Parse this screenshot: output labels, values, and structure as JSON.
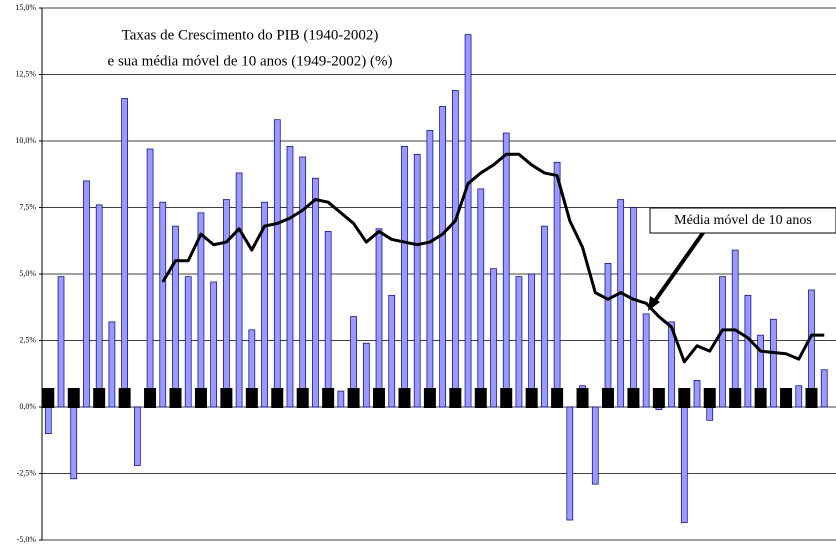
{
  "chart_data": {
    "type": "bar",
    "title": "Taxas de Crescimento do PIB (1940-2002)",
    "subtitle": "e sua média móvel de 10 anos (1949-2002) (%)",
    "categories": [
      null,
      null,
      null,
      null,
      null,
      null,
      null,
      null,
      null,
      null,
      null,
      null,
      null,
      null,
      null,
      null,
      null,
      null,
      null,
      null,
      null,
      null,
      null,
      null,
      null,
      null,
      null,
      null,
      null,
      null,
      null,
      null,
      null,
      null,
      null,
      null,
      null,
      null,
      null,
      null,
      null,
      null,
      null,
      null,
      null,
      null,
      null,
      null,
      null,
      null,
      null,
      null,
      null,
      null,
      null,
      null,
      null,
      null,
      null,
      null,
      null,
      null
    ],
    "series": [
      {
        "type": "bar",
        "color": "#9999ff",
        "values": [
          -1.0,
          4.9,
          -2.7,
          8.5,
          7.6,
          3.2,
          11.6,
          -2.2,
          9.7,
          7.7,
          6.8,
          4.9,
          7.3,
          4.7,
          7.8,
          8.8,
          2.9,
          7.7,
          10.8,
          9.8,
          9.4,
          8.6,
          6.6,
          0.6,
          3.4,
          2.4,
          6.7,
          4.2,
          9.8,
          9.5,
          10.4,
          11.3,
          11.9,
          14.0,
          8.2,
          5.2,
          10.3,
          4.9,
          5.0,
          6.8,
          9.2,
          -4.25,
          0.8,
          -2.9,
          5.4,
          7.8,
          7.5,
          3.5,
          -0.1,
          3.2,
          -4.35,
          1.0,
          -0.5,
          4.9,
          5.9,
          4.2,
          2.7,
          3.3,
          0.2,
          0.8,
          4.4,
          1.4
        ]
      },
      {
        "type": "line",
        "name": "Média móvel de 10 anos",
        "color": "#000000",
        "values": [
          null,
          null,
          null,
          null,
          null,
          null,
          null,
          null,
          null,
          4.7,
          5.5,
          5.5,
          6.5,
          6.1,
          6.2,
          6.7,
          5.9,
          6.8,
          6.9,
          7.1,
          7.4,
          7.8,
          7.7,
          7.3,
          6.9,
          6.2,
          6.6,
          6.3,
          6.2,
          6.1,
          6.2,
          6.5,
          7.0,
          8.4,
          8.8,
          9.1,
          9.5,
          9.5,
          9.1,
          8.8,
          8.7,
          7.0,
          6.0,
          4.3,
          4.05,
          4.3,
          4.05,
          3.9,
          3.4,
          3.0,
          1.7,
          2.3,
          2.1,
          2.9,
          2.9,
          2.6,
          2.1,
          2.05,
          2.0,
          1.8,
          2.7,
          2.7
        ]
      }
    ],
    "ylim": [
      -5,
      15
    ],
    "yticks": [
      {
        "value": -5,
        "label": "-5,0%"
      },
      {
        "value": -2.5,
        "label": "-2,5%"
      },
      {
        "value": 0,
        "label": "0,0%"
      },
      {
        "value": 2.5,
        "label": "2,5%"
      },
      {
        "value": 5,
        "label": "5,0%"
      },
      {
        "value": 7.5,
        "label": "7,5%"
      },
      {
        "value": 10,
        "label": "10,0%"
      },
      {
        "value": 12.5,
        "label": "12,5%"
      },
      {
        "value": 15,
        "label": "15,0%"
      }
    ],
    "grid": true
  }
}
